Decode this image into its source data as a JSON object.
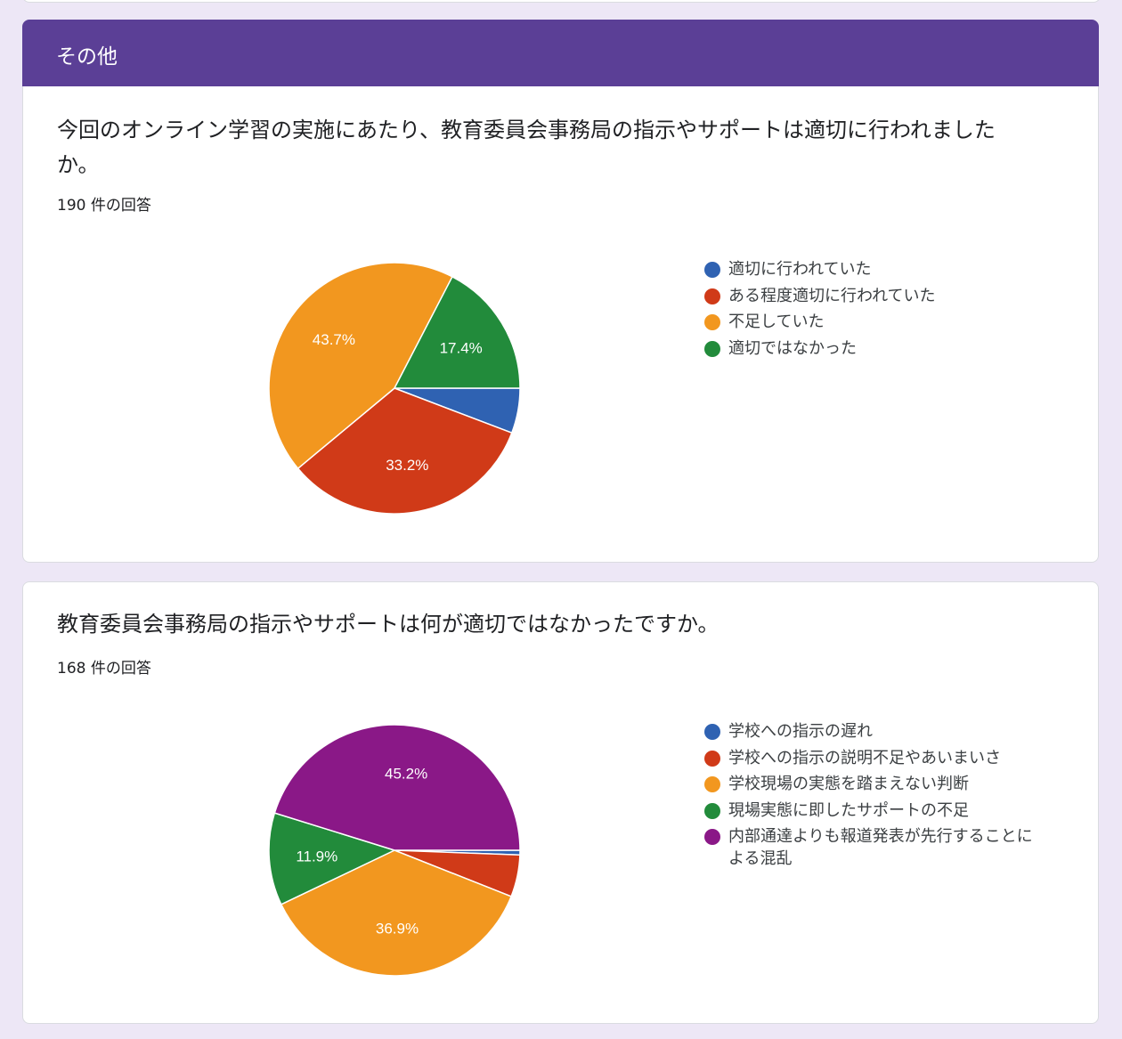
{
  "section": {
    "title": "その他"
  },
  "questions": [
    {
      "title": "今回のオンライン学習の実施にあたり、教育委員会事務局の指示やサポートは適切に行われましたか。",
      "response_count": "190 件の回答",
      "legend": [
        {
          "label": "適切に行われていた",
          "color": "#3366cc"
        },
        {
          "label": "ある程度適切に行われていた",
          "color": "#dc3912"
        },
        {
          "label": "不足していた",
          "color": "#ff9900"
        },
        {
          "label": "適切ではなかった",
          "color": "#109618"
        }
      ]
    },
    {
      "title": "教育委員会事務局の指示やサポートは何が適切ではなかったですか。",
      "response_count": "168 件の回答",
      "legend": [
        {
          "label": "学校への指示の遅れ",
          "color": "#3366cc"
        },
        {
          "label": "学校への指示の説明不足やあいまいさ",
          "color": "#dc3912"
        },
        {
          "label": "学校現場の実態を踏まえない判断",
          "color": "#ff9900"
        },
        {
          "label": "現場実態に即したサポートの不足",
          "color": "#109618"
        },
        {
          "label": "内部通達よりも報道発表が先行することによる混乱",
          "color": "#990099"
        }
      ]
    }
  ],
  "chart_data": [
    {
      "type": "pie",
      "categories": [
        "適切に行われていた",
        "ある程度適切に行われていた",
        "不足していた",
        "適切ではなかった"
      ],
      "values": [
        5.8,
        33.2,
        43.7,
        17.4
      ],
      "data_labels": [
        "",
        "33.2%",
        "43.7%",
        "17.4%"
      ],
      "colors": [
        "#2f62b2",
        "#d03a18",
        "#f2971f",
        "#228b3b"
      ],
      "title": "",
      "legend_position": "right"
    },
    {
      "type": "pie",
      "categories": [
        "学校への指示の遅れ",
        "学校への指示の説明不足やあいまいさ",
        "学校現場の実態を踏まえない判断",
        "現場実態に即したサポートの不足",
        "内部通達よりも報道発表が先行することによる混乱"
      ],
      "values": [
        0.6,
        5.4,
        36.9,
        11.9,
        45.2
      ],
      "data_labels": [
        "",
        "",
        "36.9%",
        "11.9%",
        "45.2%"
      ],
      "colors": [
        "#2f62b2",
        "#d03a18",
        "#f2971f",
        "#228b3b",
        "#8a1887"
      ],
      "title": "",
      "legend_position": "right"
    }
  ]
}
